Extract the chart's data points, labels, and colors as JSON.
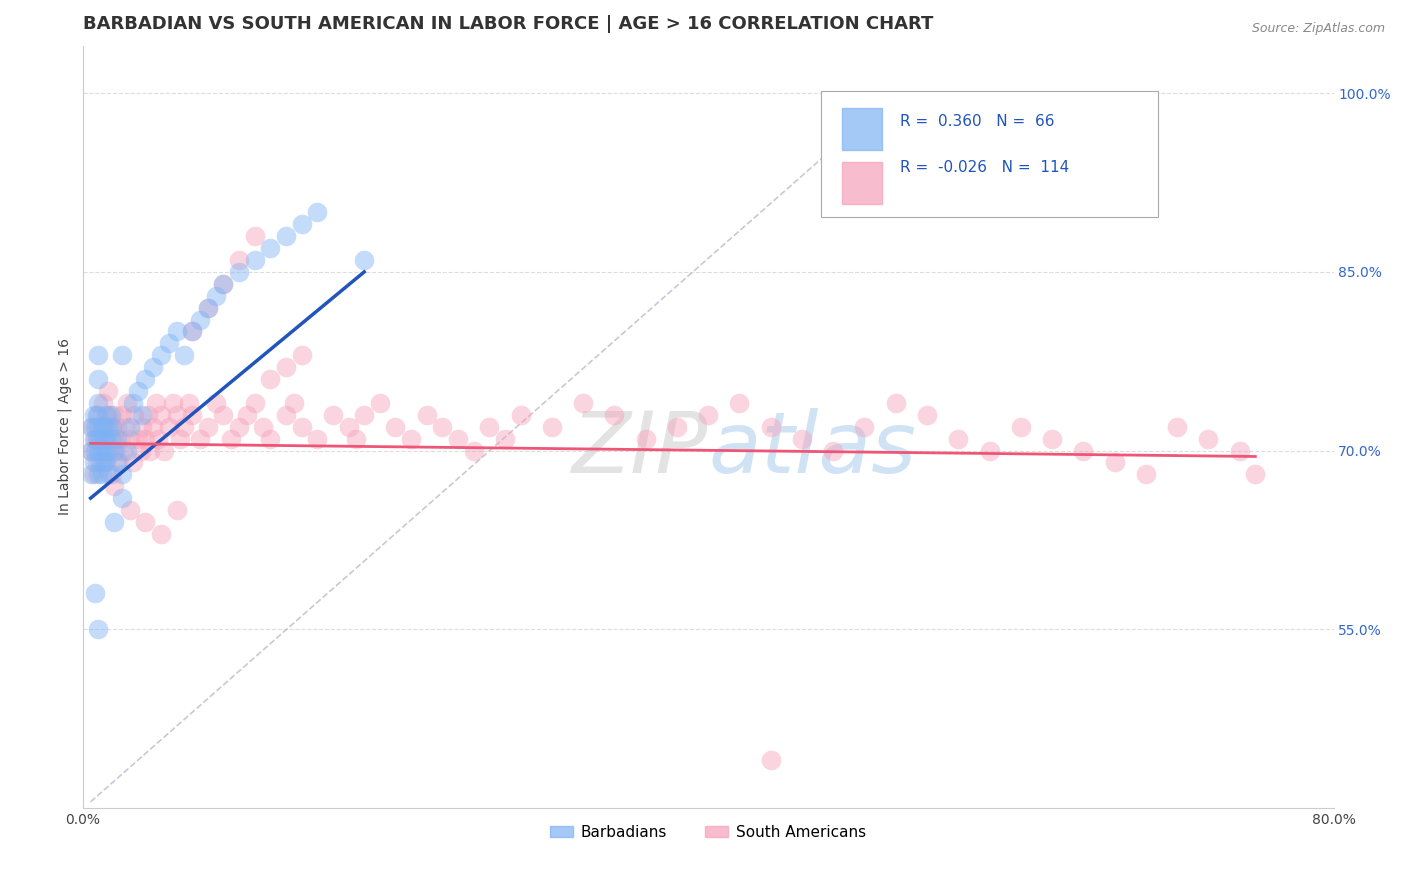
{
  "title": "BARBADIAN VS SOUTH AMERICAN IN LABOR FORCE | AGE > 16 CORRELATION CHART",
  "source_text": "Source: ZipAtlas.com",
  "ylabel": "In Labor Force | Age > 16",
  "xlim": [
    0.0,
    0.8
  ],
  "ylim": [
    0.4,
    1.04
  ],
  "xticks": [
    0.0,
    0.1,
    0.2,
    0.3,
    0.4,
    0.5,
    0.6,
    0.7,
    0.8
  ],
  "xticklabels": [
    "0.0%",
    "",
    "",
    "",
    "",
    "",
    "",
    "",
    "80.0%"
  ],
  "yticks_right": [
    0.55,
    0.7,
    0.85,
    1.0
  ],
  "yticklabels_right": [
    "55.0%",
    "70.0%",
    "85.0%",
    "100.0%"
  ],
  "grid_color": "#dddddd",
  "background_color": "#ffffff",
  "blue_color": "#7eb3f5",
  "pink_color": "#f5a0b8",
  "blue_line_color": "#2255bb",
  "pink_line_color": "#ee5577",
  "legend_R1": "0.360",
  "legend_N1": "66",
  "legend_R2": "-0.026",
  "legend_N2": "114",
  "legend_label1": "Barbadians",
  "legend_label2": "South Americans",
  "title_fontsize": 13,
  "axis_label_fontsize": 10,
  "tick_fontsize": 10,
  "blue_scatter_x": [
    0.005,
    0.005,
    0.005,
    0.007,
    0.007,
    0.007,
    0.008,
    0.008,
    0.009,
    0.009,
    0.01,
    0.01,
    0.01,
    0.01,
    0.01,
    0.01,
    0.011,
    0.011,
    0.012,
    0.012,
    0.012,
    0.013,
    0.013,
    0.014,
    0.014,
    0.015,
    0.015,
    0.015,
    0.016,
    0.016,
    0.017,
    0.018,
    0.018,
    0.019,
    0.02,
    0.02,
    0.022,
    0.022,
    0.025,
    0.025,
    0.028,
    0.03,
    0.032,
    0.035,
    0.038,
    0.04,
    0.045,
    0.05,
    0.055,
    0.06,
    0.065,
    0.07,
    0.075,
    0.08,
    0.085,
    0.09,
    0.1,
    0.11,
    0.12,
    0.13,
    0.14,
    0.15,
    0.025,
    0.18,
    0.008,
    0.01
  ],
  "blue_scatter_y": [
    0.68,
    0.7,
    0.72,
    0.69,
    0.71,
    0.73,
    0.7,
    0.72,
    0.71,
    0.73,
    0.68,
    0.7,
    0.72,
    0.74,
    0.76,
    0.78,
    0.69,
    0.71,
    0.68,
    0.7,
    0.72,
    0.69,
    0.71,
    0.7,
    0.72,
    0.71,
    0.69,
    0.73,
    0.7,
    0.72,
    0.68,
    0.71,
    0.73,
    0.72,
    0.7,
    0.64,
    0.69,
    0.71,
    0.68,
    0.66,
    0.7,
    0.72,
    0.74,
    0.75,
    0.73,
    0.76,
    0.77,
    0.78,
    0.79,
    0.8,
    0.78,
    0.8,
    0.81,
    0.82,
    0.83,
    0.84,
    0.85,
    0.86,
    0.87,
    0.88,
    0.89,
    0.9,
    0.78,
    0.86,
    0.58,
    0.55
  ],
  "pink_scatter_x": [
    0.005,
    0.006,
    0.007,
    0.008,
    0.009,
    0.01,
    0.01,
    0.011,
    0.012,
    0.013,
    0.014,
    0.015,
    0.016,
    0.016,
    0.017,
    0.018,
    0.019,
    0.02,
    0.02,
    0.021,
    0.022,
    0.023,
    0.024,
    0.025,
    0.026,
    0.027,
    0.028,
    0.03,
    0.032,
    0.033,
    0.035,
    0.037,
    0.038,
    0.04,
    0.042,
    0.043,
    0.045,
    0.047,
    0.048,
    0.05,
    0.052,
    0.055,
    0.058,
    0.06,
    0.062,
    0.065,
    0.068,
    0.07,
    0.075,
    0.08,
    0.085,
    0.09,
    0.095,
    0.1,
    0.105,
    0.11,
    0.115,
    0.12,
    0.13,
    0.135,
    0.14,
    0.15,
    0.16,
    0.17,
    0.175,
    0.18,
    0.19,
    0.2,
    0.21,
    0.22,
    0.23,
    0.24,
    0.25,
    0.26,
    0.27,
    0.28,
    0.3,
    0.32,
    0.34,
    0.36,
    0.38,
    0.4,
    0.42,
    0.44,
    0.46,
    0.48,
    0.5,
    0.52,
    0.54,
    0.56,
    0.58,
    0.6,
    0.62,
    0.64,
    0.66,
    0.68,
    0.7,
    0.72,
    0.74,
    0.75,
    0.02,
    0.03,
    0.04,
    0.05,
    0.06,
    0.07,
    0.08,
    0.09,
    0.1,
    0.11,
    0.12,
    0.13,
    0.14,
    0.44
  ],
  "pink_scatter_y": [
    0.7,
    0.72,
    0.68,
    0.71,
    0.69,
    0.73,
    0.71,
    0.7,
    0.72,
    0.74,
    0.69,
    0.71,
    0.73,
    0.75,
    0.7,
    0.72,
    0.68,
    0.71,
    0.73,
    0.7,
    0.72,
    0.69,
    0.71,
    0.73,
    0.7,
    0.72,
    0.74,
    0.71,
    0.69,
    0.73,
    0.71,
    0.7,
    0.72,
    0.71,
    0.73,
    0.7,
    0.72,
    0.74,
    0.71,
    0.73,
    0.7,
    0.72,
    0.74,
    0.73,
    0.71,
    0.72,
    0.74,
    0.73,
    0.71,
    0.72,
    0.74,
    0.73,
    0.71,
    0.72,
    0.73,
    0.74,
    0.72,
    0.71,
    0.73,
    0.74,
    0.72,
    0.71,
    0.73,
    0.72,
    0.71,
    0.73,
    0.74,
    0.72,
    0.71,
    0.73,
    0.72,
    0.71,
    0.7,
    0.72,
    0.71,
    0.73,
    0.72,
    0.74,
    0.73,
    0.71,
    0.72,
    0.73,
    0.74,
    0.72,
    0.71,
    0.7,
    0.72,
    0.74,
    0.73,
    0.71,
    0.7,
    0.72,
    0.71,
    0.7,
    0.69,
    0.68,
    0.72,
    0.71,
    0.7,
    0.68,
    0.67,
    0.65,
    0.64,
    0.63,
    0.65,
    0.8,
    0.82,
    0.84,
    0.86,
    0.88,
    0.76,
    0.77,
    0.78,
    0.44
  ],
  "blue_regline_x": [
    0.005,
    0.18
  ],
  "blue_regline_y": [
    0.66,
    0.85
  ],
  "pink_regline_x": [
    0.005,
    0.75
  ],
  "pink_regline_y": [
    0.706,
    0.695
  ],
  "ref_line_x": [
    0.005,
    0.52
  ],
  "ref_line_y": [
    0.405,
    1.0
  ]
}
